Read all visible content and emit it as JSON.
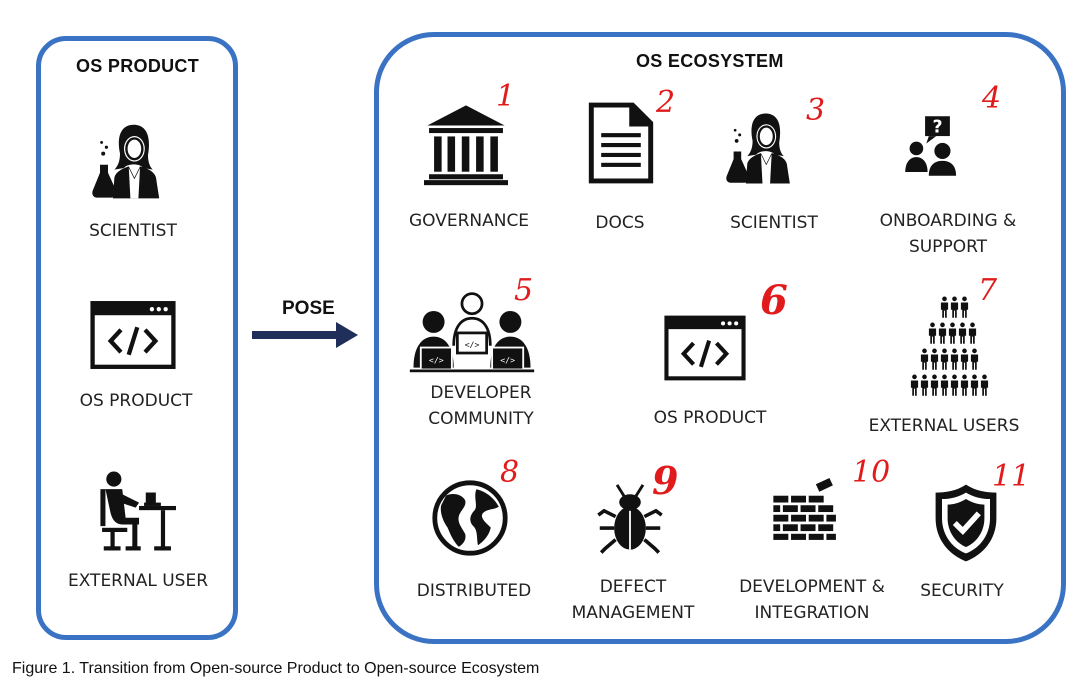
{
  "left_panel": {
    "title": "OS PRODUCT",
    "items": [
      {
        "label": "SCIENTIST",
        "icon": "scientist-icon"
      },
      {
        "label": "OS PRODUCT",
        "icon": "code-window-icon"
      },
      {
        "label": "EXTERNAL USER",
        "icon": "user-at-desk-icon"
      }
    ]
  },
  "arrow": {
    "label": "POSE"
  },
  "right_panel": {
    "title": "OS ECOSYSTEM",
    "items": [
      {
        "label": "GOVERNANCE",
        "number": "1",
        "icon": "governance-building-icon"
      },
      {
        "label": "DOCS",
        "number": "2",
        "icon": "document-icon"
      },
      {
        "label": "SCIENTIST",
        "number": "3",
        "icon": "scientist-icon"
      },
      {
        "label": "ONBOARDING &\nSUPPORT",
        "number": "4",
        "icon": "support-question-icon"
      },
      {
        "label": "DEVELOPER\nCOMMUNITY",
        "number": "5",
        "icon": "developer-community-icon"
      },
      {
        "label": "OS PRODUCT",
        "number": "6",
        "icon": "code-window-icon"
      },
      {
        "label": "EXTERNAL USERS",
        "number": "7",
        "icon": "crowd-icon"
      },
      {
        "label": "DISTRIBUTED",
        "number": "8",
        "icon": "globe-icon"
      },
      {
        "label": "DEFECT\nMANAGEMENT",
        "number": "9",
        "icon": "bug-icon"
      },
      {
        "label": "DEVELOPMENT &\nINTEGRATION",
        "number": "10",
        "icon": "brick-wall-icon"
      },
      {
        "label": "SECURITY",
        "number": "11",
        "icon": "shield-check-icon"
      }
    ]
  },
  "caption": "Figure 1. Transition from Open-source Product to Open-source Ecosystem",
  "colors": {
    "panel_border": "#3a73c4",
    "annotation": "#e11b1b",
    "icon": "#111111"
  }
}
